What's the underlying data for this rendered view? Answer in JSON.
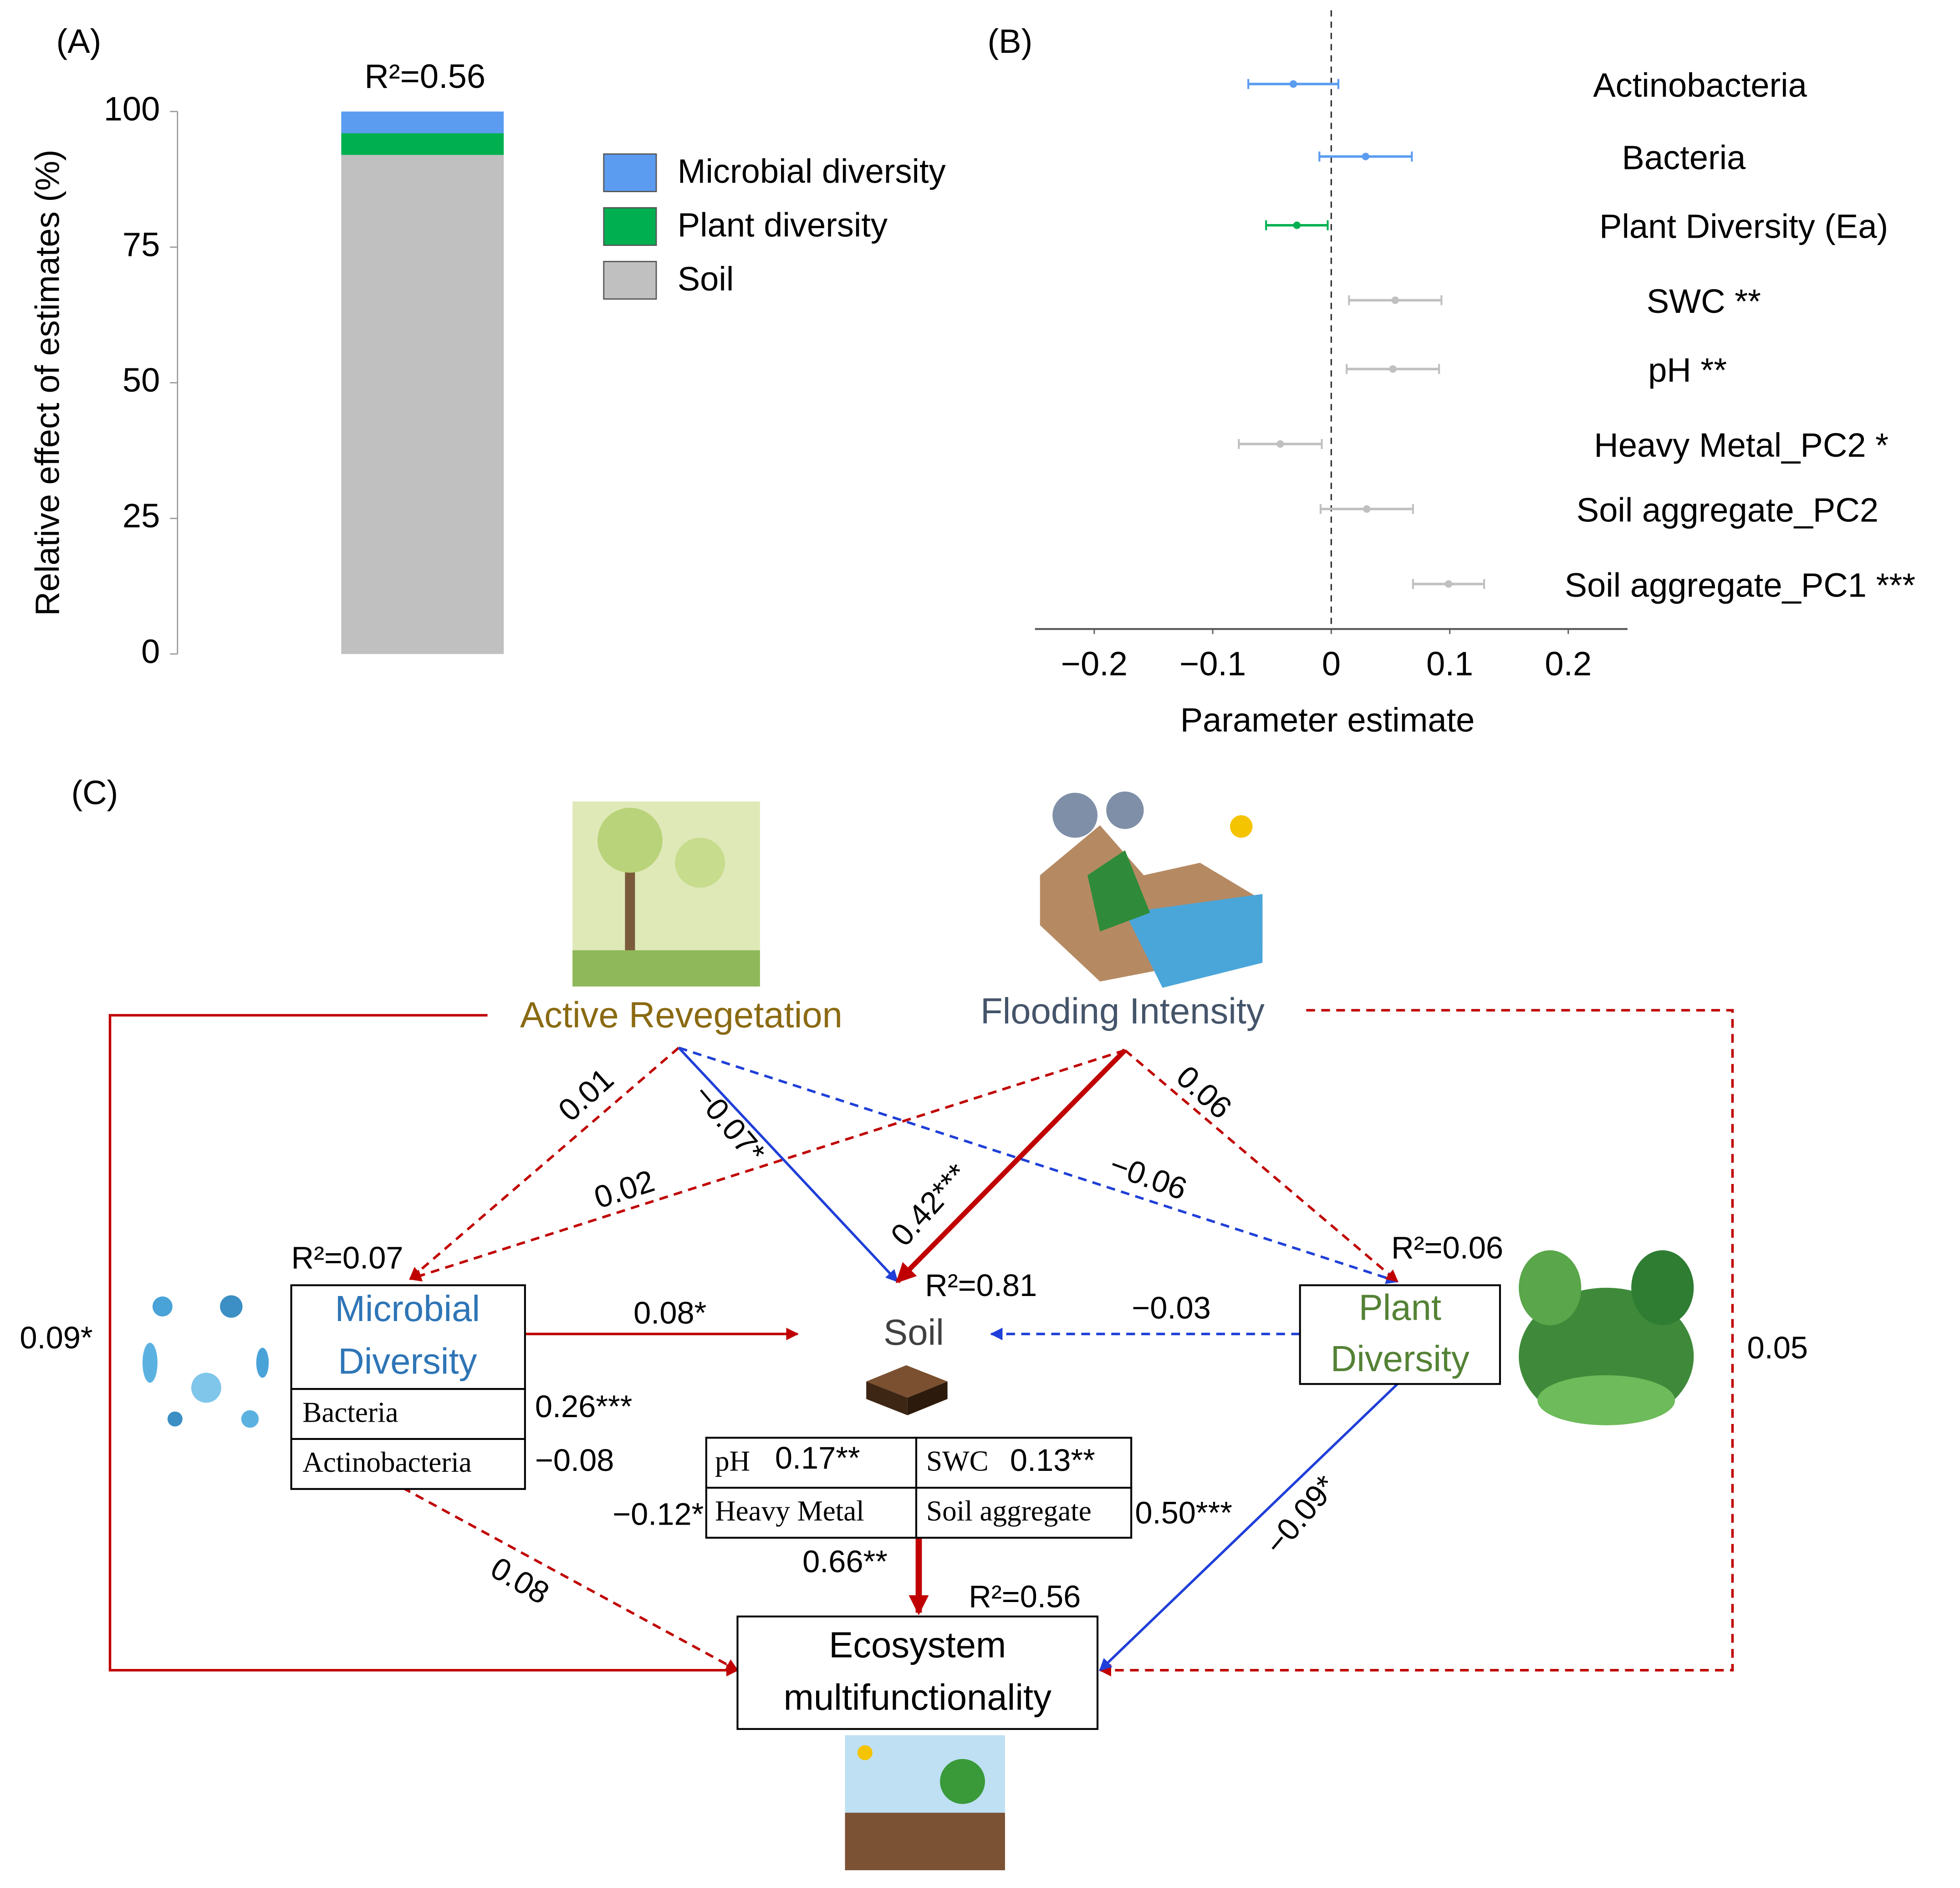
{
  "chart_data": [
    {
      "type": "stacked_bar",
      "label": "(A)",
      "annotation": "R²=0.56",
      "ylabel": "Relative effect of estimates (%)",
      "categories": [
        null
      ],
      "series": [
        {
          "name": "Soil",
          "color": "#c0c0c0",
          "values": [
            92
          ]
        },
        {
          "name": "Plant diversity",
          "color": "#00b050",
          "values": [
            4
          ]
        },
        {
          "name": "Microbial diversity",
          "color": "#5b9cf0",
          "values": [
            4
          ]
        }
      ],
      "ylim": [
        0,
        100
      ],
      "yticks": [
        0,
        25,
        50,
        75,
        100
      ],
      "legend": "right"
    },
    {
      "type": "errorbar",
      "label": "(B)",
      "xlabel": "Parameter estimate",
      "categories": [
        "Actinobacteria",
        "Bacteria",
        "Plant Diversity (Ea)",
        "SWC **",
        "pH **",
        "Heavy Metal_PC2 *",
        "Soil aggregate_PC2",
        "Soil aggregate_PC1 ***"
      ],
      "values": [
        -0.032,
        0.029,
        -0.029,
        0.054,
        0.052,
        -0.043,
        0.03,
        0.099
      ],
      "errors": [
        0.038,
        0.039,
        0.026,
        0.039,
        0.039,
        0.035,
        0.039,
        0.03
      ],
      "colors": [
        "#5b9cf0",
        "#5b9cf0",
        "#00b050",
        "#c0c0c0",
        "#c0c0c0",
        "#c0c0c0",
        "#c0c0c0",
        "#c0c0c0"
      ],
      "xlim": [
        -0.25,
        0.25
      ],
      "xticks": [
        {
          "value": -0.2,
          "label": "−0.2"
        },
        {
          "value": -0.1,
          "label": "−0.1"
        },
        0,
        0.1,
        0.2
      ],
      "zero_line": true
    }
  ],
  "diagram": {
    "label": "(C)",
    "nodes": [
      {
        "label": "Active Revegetation"
      },
      {
        "label": "Flooding Intensity"
      },
      {
        "lines": [
          "Microbial",
          "Diversity"
        ],
        "r2": "R²=0.07",
        "table": [
          [
            "Bacteria",
            "0.26***"
          ],
          [
            "Actinobacteria",
            "−0.08"
          ]
        ]
      },
      {
        "label": "Soil",
        "r2": "R²=0.81",
        "table": [
          [
            "pH",
            "0.17**"
          ],
          [
            "SWC",
            "0.13**"
          ],
          [
            "Heavy Metal",
            "−0.12*"
          ],
          [
            "Soil aggregate",
            "0.50***"
          ]
        ]
      },
      {
        "lines": [
          "Plant",
          "Diversity"
        ],
        "r2": "R²=0.06"
      },
      {
        "lines": [
          "Ecosystem",
          "multifunctionality"
        ],
        "r2": "R²=0.56"
      }
    ],
    "edges": [
      {
        "label": "0.01"
      },
      {
        "label": "0.02"
      },
      {
        "label": "−0.07*"
      },
      {
        "label": "0.42***"
      },
      {
        "label": "−0.06"
      },
      {
        "label": "0.06"
      },
      {
        "label": "0.08*"
      },
      {
        "label": "−0.03"
      },
      {
        "label": "0.09*"
      },
      {
        "label": "0.05"
      },
      {
        "label": "0.08"
      },
      {
        "label": "0.66**"
      },
      {
        "label": "−0.09*"
      }
    ]
  }
}
